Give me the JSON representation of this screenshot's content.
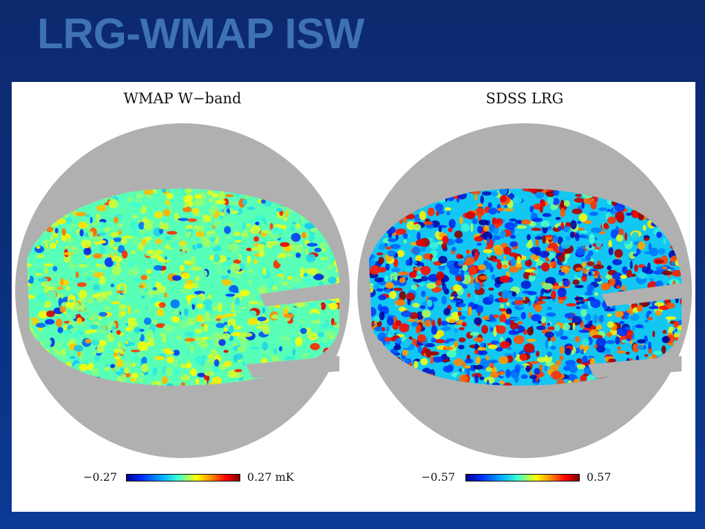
{
  "slide": {
    "title": "LRG-WMAP ISW"
  },
  "panels": [
    {
      "title": "WMAP W−band",
      "colorbar": {
        "min_label": "−0.27",
        "max_label": "0.27 mK"
      },
      "palette": {
        "mask": "#b0b0b0",
        "variance": "low"
      }
    },
    {
      "title": "SDSS LRG",
      "colorbar": {
        "min_label": "−0.57",
        "max_label": "0.57"
      },
      "palette": {
        "mask": "#b0b0b0",
        "variance": "high"
      }
    }
  ]
}
